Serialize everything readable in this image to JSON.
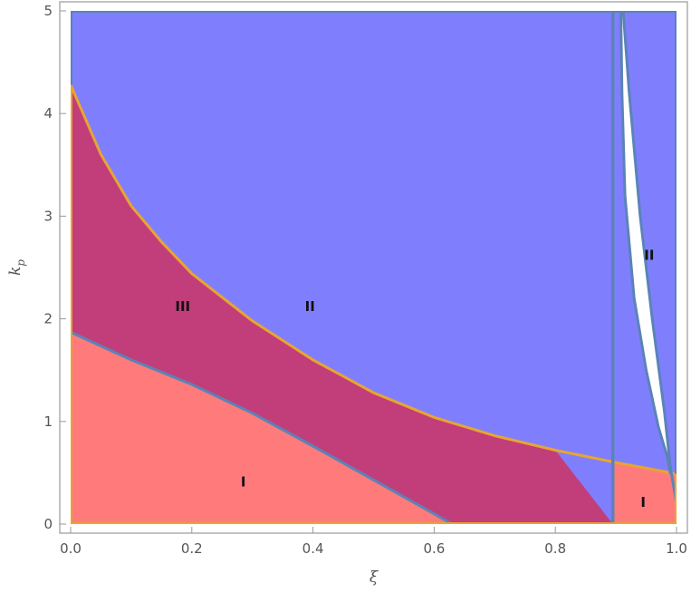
{
  "chart_data": {
    "type": "area",
    "title": "",
    "xlabel": "ξ",
    "ylabel": "k_p",
    "xlim": [
      0,
      1
    ],
    "ylim": [
      0,
      5
    ],
    "x_ticks": [
      "0.0",
      "0.2",
      "0.4",
      "0.6",
      "0.8",
      "1.0"
    ],
    "y_ticks": [
      "0",
      "1",
      "2",
      "3",
      "4",
      "5"
    ],
    "grid": false,
    "colors": {
      "region_I": "#ff7b7b",
      "region_II": "#7f7ffe",
      "region_III": "#c13e7a",
      "boundary_blue": "#5b83b8",
      "boundary_orange": "#e8a531",
      "frame": "#999999"
    },
    "boundaries": [
      {
        "id": "lower_blue",
        "color": "#5b83b8",
        "points": [
          [
            0.0,
            1.87
          ],
          [
            0.1,
            1.6
          ],
          [
            0.2,
            1.36
          ],
          [
            0.3,
            1.08
          ],
          [
            0.4,
            0.76
          ],
          [
            0.5,
            0.43
          ],
          [
            0.6,
            0.1
          ],
          [
            0.63,
            0.0
          ]
        ]
      },
      {
        "id": "upper_orange",
        "color": "#e8a531",
        "points": [
          [
            0.0,
            4.28
          ],
          [
            0.05,
            3.6
          ],
          [
            0.1,
            3.1
          ],
          [
            0.15,
            2.75
          ],
          [
            0.2,
            2.44
          ],
          [
            0.3,
            1.98
          ],
          [
            0.4,
            1.6
          ],
          [
            0.5,
            1.28
          ],
          [
            0.6,
            1.04
          ],
          [
            0.7,
            0.86
          ],
          [
            0.8,
            0.72
          ],
          [
            0.9,
            0.6
          ],
          [
            1.0,
            0.49
          ]
        ]
      },
      {
        "id": "white_gap_left",
        "color": "#5b83b8",
        "points": [
          [
            0.908,
            5.0
          ],
          [
            0.91,
            4.2
          ],
          [
            0.915,
            3.2
          ],
          [
            0.93,
            2.2
          ],
          [
            0.95,
            1.5
          ],
          [
            0.97,
            0.95
          ],
          [
            0.985,
            0.65
          ],
          [
            0.99,
            0.49
          ]
        ]
      },
      {
        "id": "white_gap_right",
        "color": "#5b83b8",
        "points": [
          [
            0.912,
            5.0
          ],
          [
            0.922,
            4.2
          ],
          [
            0.94,
            3.0
          ],
          [
            0.96,
            2.0
          ],
          [
            0.98,
            1.1
          ],
          [
            0.99,
            0.55
          ],
          [
            1.0,
            0.2
          ]
        ]
      },
      {
        "id": "vertical_line",
        "color": "#5b83b8",
        "points": [
          [
            0.895,
            0.0
          ],
          [
            0.895,
            5.0
          ]
        ]
      }
    ],
    "annotations": [
      {
        "text": "I",
        "x": 0.285,
        "y": 0.41
      },
      {
        "text": "III",
        "x": 0.185,
        "y": 2.12
      },
      {
        "text": "II",
        "x": 0.395,
        "y": 2.12
      },
      {
        "text": "II",
        "x": 0.955,
        "y": 2.62
      },
      {
        "text": "I",
        "x": 0.945,
        "y": 0.21
      }
    ]
  }
}
